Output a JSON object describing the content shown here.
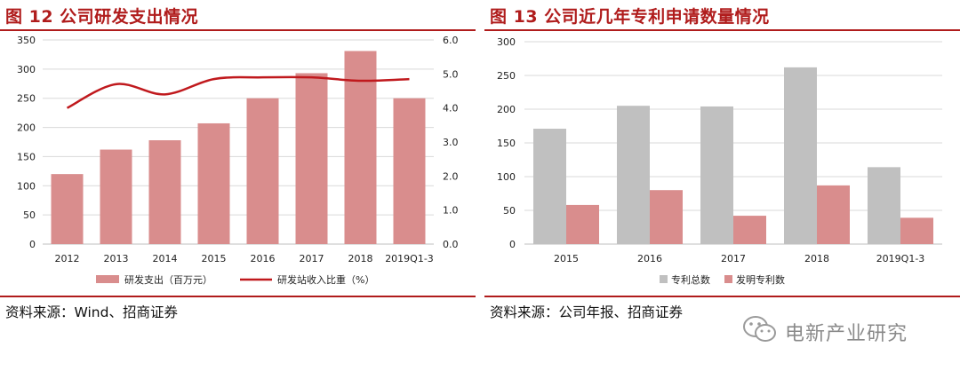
{
  "left_panel": {
    "title": "图 12  公司研发支出情况",
    "source": "资料来源：Wind、招商证券"
  },
  "right_panel": {
    "title": "图 13  公司近几年专利申请数量情况",
    "source": "资料来源：公司年报、招商证券"
  },
  "watermark": {
    "text": "电新产业研究",
    "icon": "wechat-icon"
  },
  "colors": {
    "title_red": "#b01c1c",
    "bar_pink": "#d98d8d",
    "line_red": "#c0191d",
    "bar_gray": "#c0c0c0"
  },
  "chart_data": [
    {
      "type": "bar",
      "categories": [
        "2012",
        "2013",
        "2014",
        "2015",
        "2016",
        "2017",
        "2018",
        "2019Q1-3"
      ],
      "series": [
        {
          "name": "研发支出（百万元）",
          "type": "bar",
          "axis": "left",
          "values": [
            120,
            162,
            178,
            207,
            250,
            293,
            331,
            250
          ]
        },
        {
          "name": "研发站收入比重（%）",
          "type": "line",
          "axis": "right",
          "values": [
            4.0,
            4.7,
            4.4,
            4.85,
            4.9,
            4.9,
            4.8,
            4.85
          ]
        }
      ],
      "ylim": [
        0,
        350
      ],
      "yticks": [
        "0",
        "50",
        "100",
        "150",
        "200",
        "250",
        "300",
        "350"
      ],
      "y2lim": [
        0,
        6
      ],
      "y2ticks": [
        "0.0",
        "1.0",
        "2.0",
        "3.0",
        "4.0",
        "5.0",
        "6.0"
      ],
      "grid": true,
      "legend": "bottom"
    },
    {
      "type": "bar",
      "categories": [
        "2015",
        "2016",
        "2017",
        "2018",
        "2019Q1-3"
      ],
      "series": [
        {
          "name": "专利总数",
          "values": [
            171,
            205,
            204,
            262,
            114
          ]
        },
        {
          "name": "发明专利数",
          "values": [
            58,
            80,
            42,
            87,
            39
          ]
        }
      ],
      "ylim": [
        0,
        300
      ],
      "yticks": [
        "0",
        "50",
        "100",
        "150",
        "200",
        "250",
        "300"
      ],
      "grid": true,
      "legend": "bottom"
    }
  ]
}
